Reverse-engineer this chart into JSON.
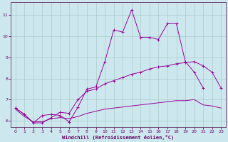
{
  "xlabel": "Windchill (Refroidissement éolien,°C)",
  "bg_color": "#cce8ee",
  "line_color": "#990099",
  "grid_color": "#aacccc",
  "axis_color": "#663366",
  "tick_label_color": "#660066",
  "xlim": [
    -0.5,
    23.5
  ],
  "ylim": [
    5.7,
    11.6
  ],
  "yticks": [
    6,
    7,
    8,
    9,
    10,
    11
  ],
  "xticks": [
    0,
    1,
    2,
    3,
    4,
    5,
    6,
    7,
    8,
    9,
    10,
    11,
    12,
    13,
    14,
    15,
    16,
    17,
    18,
    19,
    20,
    21,
    22,
    23
  ],
  "line1_x": [
    0,
    1,
    2,
    3,
    4,
    5,
    6,
    7,
    8,
    9,
    10,
    11,
    12,
    13,
    14,
    15,
    16,
    17,
    18,
    19,
    20,
    21
  ],
  "line1_y": [
    6.6,
    6.3,
    5.9,
    6.25,
    6.3,
    6.25,
    5.95,
    6.65,
    7.5,
    7.6,
    8.8,
    10.3,
    10.2,
    11.25,
    9.95,
    9.95,
    9.85,
    10.6,
    10.6,
    8.8,
    8.3,
    7.55
  ],
  "line2_x": [
    0,
    1,
    2,
    3,
    4,
    5,
    6,
    7,
    8,
    9,
    10,
    11,
    12,
    13,
    14,
    15,
    16,
    17,
    18,
    19,
    20,
    21,
    22,
    23
  ],
  "line2_y": [
    6.6,
    6.3,
    5.9,
    5.9,
    6.15,
    6.4,
    6.35,
    7.0,
    7.4,
    7.5,
    7.75,
    7.9,
    8.05,
    8.2,
    8.3,
    8.45,
    8.55,
    8.6,
    8.7,
    8.75,
    8.8,
    8.6,
    8.3,
    7.55
  ],
  "line3_x": [
    0,
    1,
    2,
    3,
    4,
    5,
    6,
    7,
    8,
    9,
    10,
    11,
    12,
    13,
    14,
    15,
    16,
    17,
    18,
    19,
    20,
    21,
    22,
    23
  ],
  "line3_y": [
    6.55,
    6.2,
    5.95,
    5.95,
    6.1,
    6.15,
    6.1,
    6.2,
    6.35,
    6.45,
    6.55,
    6.6,
    6.65,
    6.7,
    6.75,
    6.8,
    6.85,
    6.9,
    6.95,
    6.95,
    7.0,
    6.75,
    6.7,
    6.6
  ]
}
